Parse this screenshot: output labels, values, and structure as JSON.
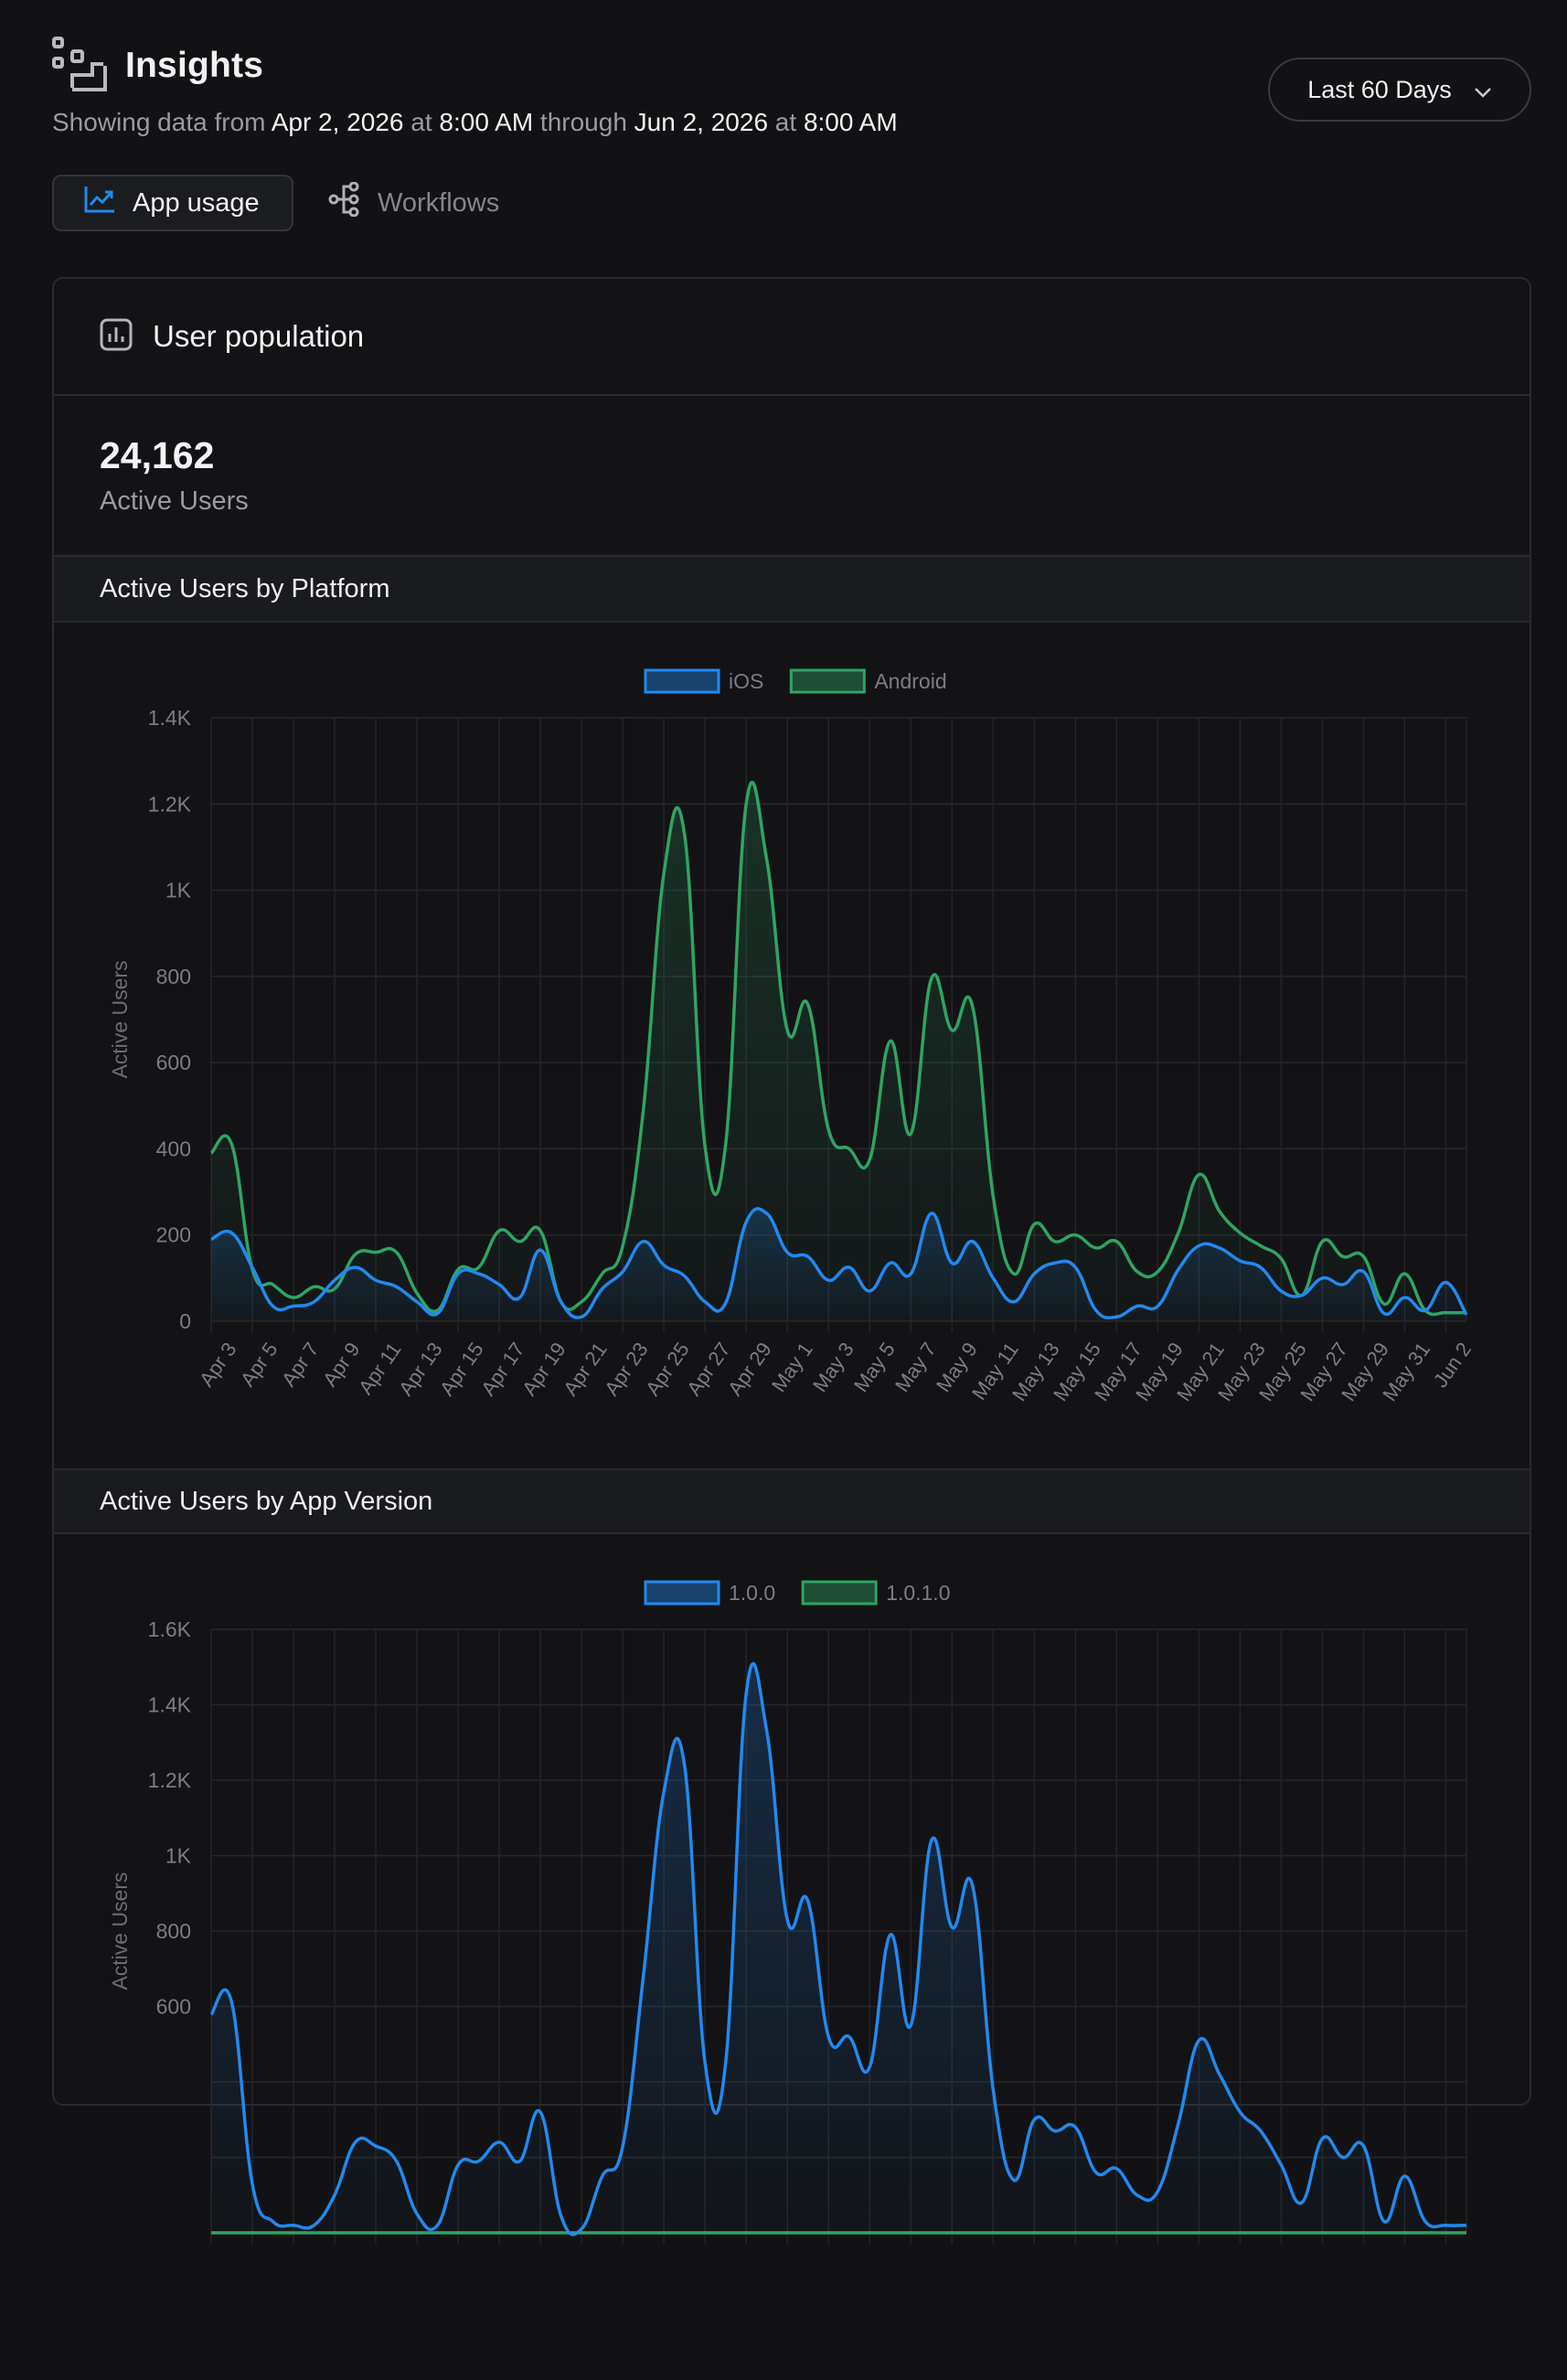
{
  "header": {
    "title": "Insights",
    "icon": "insights-icon",
    "date_range_label": "Last 60 Days",
    "subtitle": {
      "prefix": "Showing data from",
      "start_date": "Apr 2, 2026",
      "at1": "at",
      "start_time": "8:00 AM",
      "through": "through",
      "end_date": "Jun 2, 2026",
      "at2": "at",
      "end_time": "8:00 AM"
    }
  },
  "tabs": [
    {
      "label": "App usage",
      "icon": "line-chart-icon",
      "active": true
    },
    {
      "label": "Workflows",
      "icon": "workflow-icon",
      "active": false
    }
  ],
  "panel": {
    "title": "User population",
    "icon": "bar-chart-icon",
    "metric_value": "24,162",
    "metric_label": "Active Users"
  },
  "colors": {
    "blue": "#2189f0",
    "green": "#2ea463",
    "background": "#121214"
  },
  "chart_data": [
    {
      "type": "line",
      "title": "Active Users by Platform",
      "ylabel": "Active Users",
      "ylim": [
        0,
        1400
      ],
      "yticks": [
        0,
        200,
        400,
        600,
        800,
        1000,
        1200,
        1400
      ],
      "ytick_labels": [
        "0",
        "200",
        "400",
        "600",
        "800",
        "1K",
        "1.2K",
        "1.4K"
      ],
      "x_tick_labels": [
        "Apr 3",
        "Apr 5",
        "Apr 7",
        "Apr 9",
        "Apr 11",
        "Apr 13",
        "Apr 15",
        "Apr 17",
        "Apr 19",
        "Apr 21",
        "Apr 23",
        "Apr 25",
        "Apr 27",
        "Apr 29",
        "May 1",
        "May 3",
        "May 5",
        "May 7",
        "May 9",
        "May 11",
        "May 13",
        "May 15",
        "May 17",
        "May 19",
        "May 21",
        "May 23",
        "May 25",
        "May 27",
        "May 29",
        "May 31",
        "Jun 2"
      ],
      "legend_position": "top-center",
      "grid": true,
      "series": [
        {
          "name": "iOS",
          "color": "#2189f0",
          "values": [
            190,
            205,
            125,
            35,
            35,
            45,
            95,
            125,
            95,
            80,
            45,
            18,
            110,
            110,
            85,
            55,
            165,
            45,
            10,
            75,
            115,
            185,
            130,
            105,
            45,
            42,
            230,
            250,
            160,
            150,
            95,
            125,
            70,
            135,
            110,
            250,
            135,
            185,
            100,
            45,
            110,
            135,
            125,
            25,
            10,
            35,
            35,
            120,
            175,
            170,
            140,
            125,
            70,
            60,
            100,
            85,
            115,
            18,
            55,
            25,
            90,
            15
          ]
        },
        {
          "name": "Android",
          "color": "#2ea463",
          "values": [
            390,
            410,
            120,
            85,
            55,
            80,
            75,
            155,
            160,
            160,
            65,
            25,
            120,
            125,
            210,
            185,
            210,
            45,
            45,
            110,
            175,
            490,
            1040,
            1130,
            405,
            410,
            1200,
            1070,
            675,
            735,
            445,
            400,
            375,
            650,
            435,
            795,
            675,
            730,
            290,
            110,
            225,
            185,
            200,
            170,
            185,
            115,
            115,
            205,
            340,
            255,
            205,
            175,
            145,
            60,
            185,
            150,
            150,
            40,
            110,
            25,
            20,
            20
          ]
        }
      ]
    },
    {
      "type": "line",
      "title": "Active Users by App Version",
      "ylabel": "Active Users",
      "ylim": [
        0,
        1600
      ],
      "yticks": [
        600,
        800,
        1000,
        1200,
        1400,
        1600
      ],
      "ytick_labels": [
        "600",
        "800",
        "1K",
        "1.2K",
        "1.4K",
        "1.6K"
      ],
      "legend_position": "top-center",
      "grid": true,
      "series": [
        {
          "name": "1.0.0",
          "color": "#2189f0",
          "values": [
            580,
            610,
            130,
            30,
            20,
            20,
            100,
            240,
            230,
            190,
            50,
            20,
            180,
            190,
            240,
            190,
            320,
            45,
            10,
            150,
            230,
            680,
            1170,
            1240,
            450,
            450,
            1430,
            1330,
            830,
            880,
            520,
            520,
            440,
            790,
            550,
            1040,
            810,
            920,
            380,
            140,
            300,
            270,
            280,
            160,
            170,
            100,
            110,
            290,
            510,
            420,
            320,
            270,
            180,
            80,
            250,
            200,
            230,
            30,
            150,
            30,
            20,
            20
          ]
        },
        {
          "name": "1.0.1.0",
          "color": "#2ea463",
          "values": [
            0,
            0,
            0,
            0,
            0,
            0,
            0,
            0,
            0,
            0,
            0,
            0,
            0,
            0,
            0,
            0,
            0,
            0,
            0,
            0,
            0,
            0,
            0,
            0,
            0,
            0,
            0,
            0,
            0,
            0,
            0,
            0,
            0,
            0,
            0,
            0,
            0,
            0,
            0,
            0,
            0,
            0,
            0,
            0,
            0,
            0,
            0,
            0,
            0,
            0,
            0,
            0,
            0,
            0,
            0,
            0,
            0,
            0,
            0,
            0,
            0,
            0
          ]
        }
      ]
    }
  ]
}
